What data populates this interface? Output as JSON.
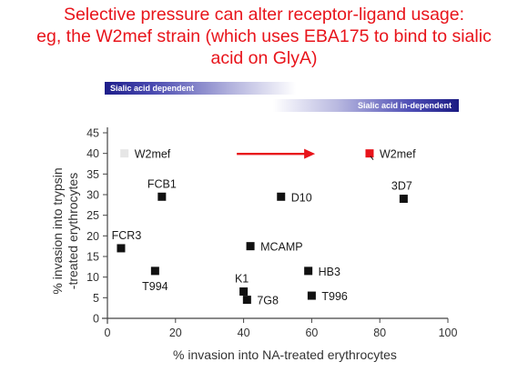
{
  "title": {
    "lines": [
      "Selective pressure can alter receptor-ligand usage:",
      "eg, the W2mef strain (which uses EBA175 to bind to sialic",
      "acid on GlyA)"
    ]
  },
  "bands": {
    "left_label": "Sialic acid dependent",
    "right_label": "Sialic acid in-dependent"
  },
  "colors": {
    "title": "#e8141b",
    "point": "#111111",
    "highlight": "#e8141b",
    "ghost": "#e6e6e6"
  },
  "chart_data": {
    "type": "scatter",
    "xlabel": "% invasion into NA-treated erythrocytes",
    "ylabel_lines": [
      "% invasion into trypsin",
      "-treated erythrocytes"
    ],
    "xlim": [
      0,
      100
    ],
    "ylim": [
      0,
      45
    ],
    "x_ticks": [
      0,
      20,
      40,
      60,
      80,
      100
    ],
    "y_ticks": [
      0,
      5,
      10,
      15,
      20,
      25,
      30,
      35,
      40,
      45
    ],
    "points": [
      {
        "name": "W2mef",
        "x": 5,
        "y": 40,
        "style": "ghost",
        "label_pos": "right"
      },
      {
        "name": "W2mef",
        "x": 77,
        "y": 40,
        "style": "highlight",
        "label_pos": "right"
      },
      {
        "name": "3D7",
        "x": 87,
        "y": 29,
        "style": "normal",
        "label_pos": "above"
      },
      {
        "name": "FCB1",
        "x": 16,
        "y": 29.5,
        "style": "normal",
        "label_pos": "above"
      },
      {
        "name": "D10",
        "x": 51,
        "y": 29.5,
        "style": "normal",
        "label_pos": "right"
      },
      {
        "name": "FCR3",
        "x": 4,
        "y": 17,
        "style": "normal",
        "label_pos": "above"
      },
      {
        "name": "MCAMP",
        "x": 42,
        "y": 17.5,
        "style": "normal",
        "label_pos": "right"
      },
      {
        "name": "T994",
        "x": 14,
        "y": 11.5,
        "style": "normal",
        "label_pos": "below"
      },
      {
        "name": "HB3",
        "x": 59,
        "y": 11.5,
        "style": "normal",
        "label_pos": "right"
      },
      {
        "name": "K1",
        "x": 40,
        "y": 6.5,
        "style": "normal",
        "label_pos": "above"
      },
      {
        "name": "7G8",
        "x": 41,
        "y": 4.5,
        "style": "normal",
        "label_pos": "right"
      },
      {
        "name": "T996",
        "x": 60,
        "y": 5.5,
        "style": "normal",
        "label_pos": "right"
      }
    ],
    "arrow": {
      "from": [
        38,
        40
      ],
      "to": [
        61,
        40
      ],
      "color": "#e8141b"
    }
  }
}
